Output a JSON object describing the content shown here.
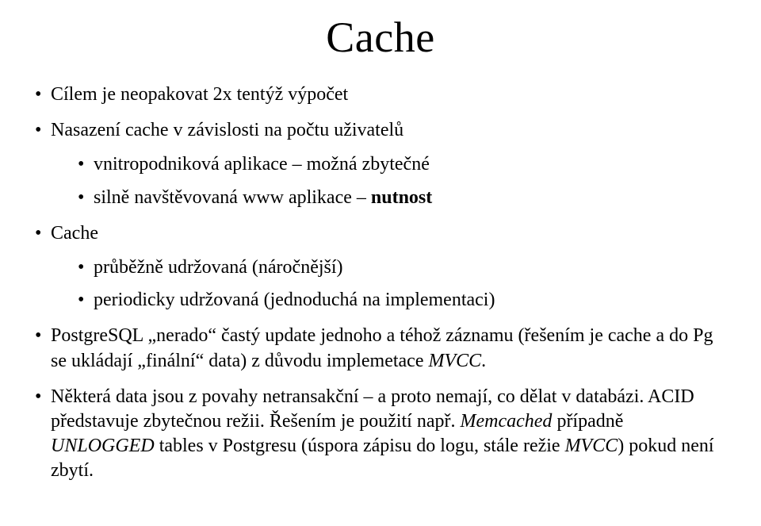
{
  "title": "Cache",
  "bullets": {
    "b1": "Cílem je neopakovat 2x tentýž výpočet",
    "b2": "Nasazení cache v závislosti na počtu uživatelů",
    "b2a": "vnitropodniková aplikace – možná zbytečné",
    "b2b_pre": "silně navštěvovaná www aplikace – ",
    "b2b_bold": "nutnost",
    "b3": "Cache",
    "b3a": "průběžně udržovaná (náročnější)",
    "b3b": "periodicky udržovaná (jednoduchá na implementaci)",
    "b4_pre": "PostgreSQL „nerado“ častý update jednoho a téhož záznamu (řešením je cache a do Pg se ukládají „finální“ data) z důvodu implemetace ",
    "b4_it": "MVCC",
    "b4_post": ".",
    "b5_pre": "Některá data jsou z povahy netransakční – a proto nemají, co dělat v databázi. ACID představuje zbytečnou režii. Řešením je použití např. ",
    "b5_it1": "Memcached",
    "b5_mid": " případně ",
    "b5_it2": "UNLOGGED",
    "b5_mid2": " tables v Postgresu (úspora zápisu do logu, stále režie ",
    "b5_it3": "MVCC",
    "b5_post": ") pokud není zbytí."
  }
}
